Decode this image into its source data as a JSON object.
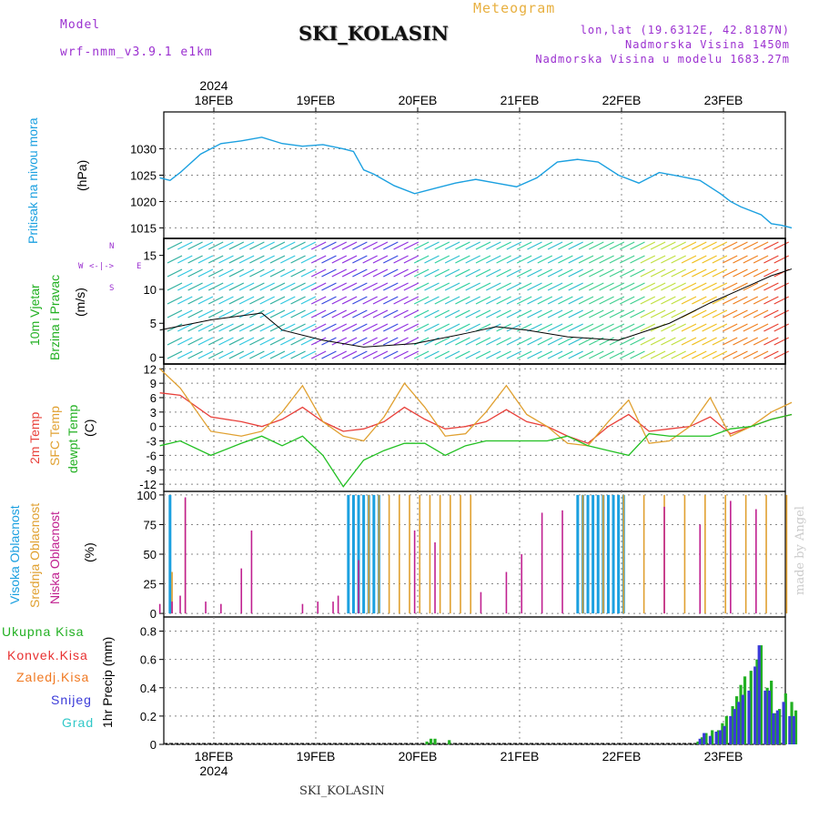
{
  "header": {
    "meteogram": "Meteogram",
    "model_label": "Model",
    "model_value": "wrf-nmm_v3.9.1 e1km",
    "station": "SKI_KOLASIN",
    "lonlat": "lon,lat (19.6312E, 42.8187N)",
    "elev": "Nadmorska Visina 1450m",
    "elev_model": "Nadmorska Visina u modelu 1683.27m"
  },
  "footer": {
    "station": "SKI_KOLASIN",
    "watermark": "made by Angel"
  },
  "colors": {
    "pressure": "#1ba0e0",
    "temp2m": "#e8403a",
    "sfc": "#e0a030",
    "dew": "#22c022",
    "high": "#1ba0e0",
    "mid": "#e0a030",
    "low": "#c02090",
    "total": "#22b022",
    "conv": "#e83030",
    "frozen": "#f07820",
    "snow": "#3a3ad8",
    "graupel": "#30c8c8"
  },
  "chart_data": [
    {
      "type": "line",
      "id": "pressure",
      "ylabel": "Pritisak na nivou mora",
      "unit": "(hPa)",
      "ylim": [
        1013,
        1037
      ],
      "yticks": [
        1015,
        1020,
        1025,
        1030
      ],
      "x_dates": [
        "18FEB",
        "19FEB",
        "20FEB",
        "21FEB",
        "22FEB",
        "23FEB"
      ],
      "year": "2024",
      "x": [
        0,
        0.1,
        0.2,
        0.4,
        0.6,
        0.8,
        1.0,
        1.2,
        1.4,
        1.6,
        1.8,
        1.9,
        2.0,
        2.1,
        2.3,
        2.5,
        2.7,
        2.9,
        3.1,
        3.3,
        3.5,
        3.7,
        3.9,
        4.1,
        4.3,
        4.5,
        4.7,
        4.9,
        5.1,
        5.3,
        5.5,
        5.6
      ],
      "y": [
        1024.5,
        1024,
        1025.5,
        1029,
        1031,
        1031.5,
        1032.2,
        1031,
        1030.5,
        1030.8,
        1030,
        1029.5,
        1026,
        1025.2,
        1023,
        1021.5,
        1022.5,
        1023.5,
        1024.2,
        1023.5,
        1022.8,
        1024.5,
        1027.5,
        1028,
        1027.5,
        1025,
        1023.5,
        1025.5,
        1024.8,
        1024,
        1021.5,
        1020
      ],
      "x_tail": [
        5.6,
        5.7,
        5.9,
        6.0,
        6.1,
        6.2
      ],
      "y_tail": [
        1020,
        1019,
        1017.5,
        1015.8,
        1015.5,
        1015
      ]
    },
    {
      "type": "line",
      "id": "wind",
      "ylabel1": "10m Vjetar",
      "ylabel2": "Brzina i Pravac",
      "unit": "(m/s)",
      "compass": {
        "n": "N",
        "s": "S",
        "w": "W",
        "e": "E"
      },
      "ylim": [
        -1,
        17.5
      ],
      "yticks": [
        0,
        5,
        10,
        15
      ],
      "series": [
        {
          "name": "speed",
          "x": [
            0,
            0.5,
            1.0,
            1.2,
            1.6,
            2.0,
            2.5,
            3.0,
            3.3,
            3.6,
            4.0,
            4.5,
            5.0,
            5.4,
            5.7,
            6.0,
            6.2
          ],
          "y": [
            4,
            5.5,
            6.5,
            4,
            2.5,
            1.5,
            2,
            3.5,
            4.5,
            4,
            3,
            2.5,
            5,
            8,
            10,
            12,
            13
          ]
        }
      ]
    },
    {
      "type": "line",
      "id": "temperature",
      "labels": [
        "2m Temp",
        "SFC Temp",
        "dewpt Temp"
      ],
      "unit": "(C)",
      "ylim": [
        -13.5,
        13
      ],
      "yticks": [
        12,
        9,
        6,
        3,
        0,
        -3,
        -6,
        -9,
        -12
      ],
      "series": [
        {
          "name": "2m Temp",
          "x": [
            0,
            0.2,
            0.5,
            0.8,
            1.0,
            1.2,
            1.4,
            1.6,
            1.8,
            2.0,
            2.2,
            2.4,
            2.6,
            2.8,
            3.0,
            3.2,
            3.4,
            3.6,
            3.8,
            4.0,
            4.2,
            4.4,
            4.6,
            4.8,
            5.0,
            5.2,
            5.4,
            5.6,
            5.8,
            6.0,
            6.2
          ],
          "y": [
            7,
            6.5,
            2,
            1,
            0,
            1.5,
            4,
            1,
            -1,
            -0.5,
            1,
            4,
            1.5,
            -0.5,
            0,
            1,
            3.5,
            1,
            0,
            -2,
            -3.5,
            0,
            2.5,
            -1,
            -0.5,
            0,
            2,
            -1.5,
            0,
            1.5,
            2.5
          ]
        },
        {
          "name": "SFC Temp",
          "x": [
            0,
            0.2,
            0.5,
            0.8,
            1.0,
            1.2,
            1.4,
            1.6,
            1.8,
            2.0,
            2.2,
            2.4,
            2.6,
            2.8,
            3.0,
            3.2,
            3.4,
            3.6,
            3.8,
            4.0,
            4.2,
            4.4,
            4.6,
            4.8,
            5.0,
            5.2,
            5.4,
            5.6,
            5.8,
            6.0,
            6.2
          ],
          "y": [
            12,
            8,
            -1,
            -2,
            -1,
            3,
            8.5,
            1,
            -2,
            -3,
            2,
            9,
            4,
            -2,
            -1.5,
            3,
            8.5,
            2.5,
            0,
            -3.5,
            -4,
            1,
            5.5,
            -3.5,
            -3,
            0,
            6,
            -2,
            0,
            3,
            5
          ]
        },
        {
          "name": "dewpt Temp",
          "x": [
            0,
            0.2,
            0.5,
            0.8,
            1.0,
            1.2,
            1.4,
            1.6,
            1.8,
            2.0,
            2.2,
            2.4,
            2.6,
            2.8,
            3.0,
            3.2,
            3.4,
            3.6,
            3.8,
            4.0,
            4.2,
            4.4,
            4.6,
            4.8,
            5.0,
            5.2,
            5.4,
            5.6,
            5.8,
            6.0,
            6.2
          ],
          "y": [
            -4,
            -3,
            -6,
            -3.5,
            -2,
            -4,
            -2,
            -6,
            -12.5,
            -7,
            -5,
            -3.5,
            -3.5,
            -6,
            -4,
            -3,
            -3,
            -3,
            -3,
            -2,
            -4,
            -5,
            -6,
            -1.5,
            -2,
            -2,
            -2,
            -0.5,
            0,
            1.5,
            2.5
          ]
        }
      ]
    },
    {
      "type": "bar",
      "id": "clouds",
      "labels": [
        "Visoka Oblacnost",
        "Srednja Oblacnost",
        "Niska Oblacnost"
      ],
      "unit": "(%)",
      "ylim": [
        -3,
        103
      ],
      "yticks": [
        0,
        25,
        50,
        75,
        100
      ],
      "series": [
        {
          "name": "Visoka",
          "x": [
            0.1,
            1.85,
            1.9,
            1.95,
            2.0,
            2.05,
            2.1,
            2.15,
            4.1,
            4.15,
            4.2,
            4.25,
            4.3,
            4.35,
            4.4,
            4.45,
            4.5,
            4.55
          ],
          "y": [
            100,
            100,
            100,
            100,
            100,
            100,
            100,
            100,
            100,
            100,
            100,
            100,
            100,
            100,
            100,
            100,
            100,
            100
          ]
        },
        {
          "name": "Srednja",
          "x": [
            0.12,
            0.25,
            2.05,
            2.15,
            2.25,
            2.35,
            2.45,
            2.55,
            2.65,
            2.75,
            2.85,
            2.95,
            3.05,
            4.15,
            4.35,
            4.55,
            4.75,
            4.95,
            5.15,
            5.35,
            5.55,
            5.75,
            5.95,
            6.15
          ],
          "y": [
            35,
            97,
            100,
            100,
            100,
            100,
            100,
            100,
            100,
            100,
            100,
            100,
            100,
            100,
            100,
            100,
            100,
            100,
            100,
            100,
            100,
            100,
            100,
            100
          ]
        },
        {
          "name": "Niska",
          "x": [
            0.0,
            0.12,
            0.2,
            0.25,
            0.45,
            0.6,
            0.8,
            0.9,
            1.4,
            1.55,
            1.7,
            2.5,
            2.7,
            3.15,
            3.4,
            3.55,
            3.75,
            3.95,
            1.75,
            1.95,
            4.95,
            5.3,
            5.6,
            5.85
          ],
          "y": [
            8,
            10,
            15,
            98,
            10,
            8,
            38,
            70,
            8,
            10,
            10,
            70,
            60,
            18,
            35,
            50,
            85,
            87,
            15,
            45,
            90,
            75,
            95,
            88
          ]
        }
      ]
    },
    {
      "type": "bar",
      "id": "precip",
      "labels": [
        "Ukupna Kisa",
        "Konvek.Kisa",
        "Zaledj.Kisa",
        "Snijeg",
        "Grad"
      ],
      "ylabel": "1hr Precip (mm)",
      "ylim": [
        0,
        0.9
      ],
      "yticks": [
        0,
        0.2,
        0.4,
        0.6,
        0.8
      ],
      "series": [
        {
          "name": "Ukupna Kisa",
          "x": [
            2.62,
            2.66,
            2.7,
            2.84,
            5.28,
            5.32,
            5.36,
            5.42,
            5.48,
            5.52,
            5.56,
            5.62,
            5.66,
            5.7,
            5.74,
            5.8,
            5.86,
            5.9,
            5.96,
            6.0,
            6.04,
            6.08,
            6.14,
            6.2,
            6.24
          ],
          "y": [
            0.02,
            0.04,
            0.04,
            0.03,
            0.02,
            0.05,
            0.08,
            0.1,
            0.1,
            0.15,
            0.2,
            0.27,
            0.34,
            0.42,
            0.48,
            0.52,
            0.6,
            0.7,
            0.4,
            0.45,
            0.22,
            0.25,
            0.36,
            0.3,
            0.24
          ]
        },
        {
          "name": "Snijeg",
          "x": [
            5.3,
            5.34,
            5.4,
            5.46,
            5.5,
            5.54,
            5.6,
            5.64,
            5.68,
            5.72,
            5.78,
            5.84,
            5.88,
            5.94,
            5.98,
            6.02,
            6.06,
            6.12,
            6.18,
            6.22
          ],
          "y": [
            0.04,
            0.08,
            0.06,
            0.09,
            0.1,
            0.13,
            0.2,
            0.25,
            0.3,
            0.35,
            0.38,
            0.55,
            0.7,
            0.38,
            0.38,
            0.22,
            0.24,
            0.3,
            0.2,
            0.2
          ]
        }
      ]
    }
  ]
}
